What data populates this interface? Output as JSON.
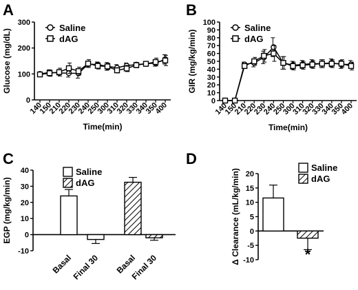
{
  "chart_data": [
    {
      "panel": "A",
      "type": "line",
      "xlabel": "Time(min)",
      "ylabel": "Glucose (mg/dL)",
      "ylim": [
        0,
        300
      ],
      "yticks": [
        "0",
        "100",
        "200",
        "300"
      ],
      "x": [
        "140",
        "150",
        "210",
        "220",
        "230",
        "240",
        "250",
        "300",
        "310",
        "320",
        "330",
        "340",
        "350",
        "400"
      ],
      "series": [
        {
          "name": "Saline",
          "marker": "circle",
          "values": [
            100,
            106,
            104,
            103,
            102,
            138,
            136,
            129,
            124,
            132,
            136,
            139,
            142,
            156
          ],
          "errors": [
            5,
            10,
            8,
            15,
            18,
            12,
            10,
            15,
            12,
            10,
            8,
            8,
            12,
            18
          ]
        },
        {
          "name": "dAG",
          "marker": "square",
          "values": [
            98,
            103,
            107,
            122,
            111,
            140,
            131,
            129,
            114,
            121,
            134,
            139,
            146,
            152
          ],
          "errors": [
            5,
            12,
            15,
            20,
            15,
            15,
            12,
            12,
            10,
            12,
            10,
            8,
            15,
            20
          ]
        }
      ],
      "legend_position": "top-left"
    },
    {
      "panel": "B",
      "type": "line",
      "xlabel": "Time(min)",
      "ylabel": "GIR (mg/kg/min)",
      "ylim": [
        0,
        100
      ],
      "yticks": [
        "0",
        "10",
        "20",
        "30",
        "40",
        "50",
        "60",
        "70",
        "80",
        "90",
        "100"
      ],
      "x": [
        "140",
        "150",
        "210",
        "220",
        "230",
        "240",
        "250",
        "300",
        "310",
        "320",
        "330",
        "340",
        "350",
        "400"
      ],
      "series": [
        {
          "name": "Saline",
          "marker": "circle",
          "values": [
            0,
            0,
            46,
            48,
            55,
            68,
            48,
            45,
            46,
            47,
            47,
            48,
            46,
            46
          ],
          "errors": [
            0,
            0,
            3,
            5,
            8,
            12,
            8,
            5,
            5,
            5,
            5,
            5,
            5,
            5
          ]
        },
        {
          "name": "dAG",
          "marker": "square",
          "values": [
            0,
            0,
            44,
            50,
            57,
            60,
            48,
            44,
            45,
            46,
            47,
            47,
            47,
            44
          ],
          "errors": [
            0,
            0,
            3,
            5,
            8,
            10,
            8,
            5,
            5,
            5,
            5,
            5,
            5,
            5
          ]
        }
      ],
      "legend_position": "top-left"
    },
    {
      "panel": "C",
      "type": "bar",
      "xlabel": "",
      "ylabel": "EGP (mg/kg/min)",
      "ylim": [
        -10,
        40
      ],
      "yticks": [
        "-10",
        "0",
        "10",
        "20",
        "30",
        "40"
      ],
      "categories": [
        "Basal",
        "Final 30",
        "Basal",
        "Final 30"
      ],
      "series": [
        {
          "name": "Saline",
          "fill": "white",
          "values": [
            24,
            -3,
            null,
            null
          ],
          "errors": [
            4,
            2.5,
            null,
            null
          ]
        },
        {
          "name": "dAG",
          "fill": "hatched",
          "values": [
            null,
            null,
            32.5,
            -2
          ],
          "errors": [
            null,
            null,
            3,
            1.5
          ]
        }
      ],
      "legend_position": "top-right"
    },
    {
      "panel": "D",
      "type": "bar",
      "xlabel": "",
      "ylabel": "Δ Clearance (mL/kg/min)",
      "ylim": [
        -10,
        20
      ],
      "yticks": [
        "-10",
        "-5",
        "0",
        "5",
        "10",
        "15",
        "20"
      ],
      "categories": [
        "Saline",
        "dAG"
      ],
      "series": [
        {
          "name": "Saline",
          "fill": "white",
          "values": [
            11.5,
            null
          ],
          "errors": [
            4.5,
            null
          ]
        },
        {
          "name": "dAG",
          "fill": "hatched",
          "values": [
            null,
            -2.5
          ],
          "errors": [
            null,
            4
          ]
        }
      ],
      "annotations": [
        "*"
      ],
      "legend_position": "top-right"
    }
  ]
}
